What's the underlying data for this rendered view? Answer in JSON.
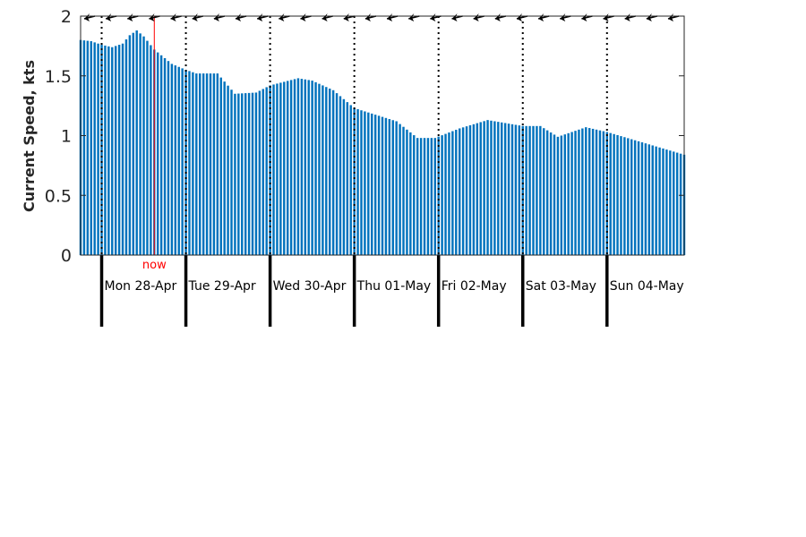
{
  "chart_data": {
    "type": "bar",
    "ylabel": "Current Speed, kts",
    "ylim": [
      0,
      2
    ],
    "yticks": [
      0,
      0.5,
      1,
      1.5,
      2
    ],
    "ytick_labels": [
      "0",
      "0.5",
      "1",
      "1.5",
      "2"
    ],
    "x_start": "2025-04-27T18:00",
    "x_end": "2025-05-04T22:00",
    "step_hours": 1,
    "days": [
      {
        "date": "2025-04-28",
        "label": "Mon 28-Apr"
      },
      {
        "date": "2025-04-29",
        "label": "Tue 29-Apr"
      },
      {
        "date": "2025-04-30",
        "label": "Wed 30-Apr"
      },
      {
        "date": "2025-05-01",
        "label": "Thu 01-May"
      },
      {
        "date": "2025-05-02",
        "label": "Fri 02-May"
      },
      {
        "date": "2025-05-03",
        "label": "Sat 03-May"
      },
      {
        "date": "2025-05-04",
        "label": "Sun 04-May"
      }
    ],
    "now": {
      "label": "now",
      "time": "2025-04-28T15:00"
    },
    "anchors": [
      [
        "2025-04-27T18:00",
        1.8
      ],
      [
        "2025-04-27T21:00",
        1.79
      ],
      [
        "2025-04-28T00:00",
        1.76
      ],
      [
        "2025-04-28T03:00",
        1.74
      ],
      [
        "2025-04-28T06:00",
        1.77
      ],
      [
        "2025-04-28T08:00",
        1.84
      ],
      [
        "2025-04-28T10:00",
        1.88
      ],
      [
        "2025-04-28T12:00",
        1.83
      ],
      [
        "2025-04-28T15:00",
        1.72
      ],
      [
        "2025-04-28T20:00",
        1.6
      ],
      [
        "2025-04-29T00:00",
        1.55
      ],
      [
        "2025-04-29T03:00",
        1.52
      ],
      [
        "2025-04-29T09:00",
        1.52
      ],
      [
        "2025-04-29T14:00",
        1.35
      ],
      [
        "2025-04-29T20:00",
        1.36
      ],
      [
        "2025-04-30T00:00",
        1.42
      ],
      [
        "2025-04-30T08:00",
        1.48
      ],
      [
        "2025-04-30T12:00",
        1.46
      ],
      [
        "2025-04-30T18:00",
        1.38
      ],
      [
        "2025-05-01T00:00",
        1.23
      ],
      [
        "2025-05-01T12:00",
        1.12
      ],
      [
        "2025-05-01T18:00",
        0.98
      ],
      [
        "2025-05-01T23:00",
        0.98
      ],
      [
        "2025-05-02T06:00",
        1.06
      ],
      [
        "2025-05-02T14:00",
        1.13
      ],
      [
        "2025-05-03T00:00",
        1.08
      ],
      [
        "2025-05-03T05:00",
        1.08
      ],
      [
        "2025-05-03T10:00",
        0.99
      ],
      [
        "2025-05-03T18:00",
        1.07
      ],
      [
        "2025-05-04T00:00",
        1.03
      ],
      [
        "2025-05-04T22:00",
        0.84
      ]
    ],
    "bar_color": "#0072BD",
    "now_color": "#FF0000",
    "direction_arrows": {
      "count": 28,
      "heading": "west-southwest",
      "color": "#000000"
    },
    "grid": false
  }
}
